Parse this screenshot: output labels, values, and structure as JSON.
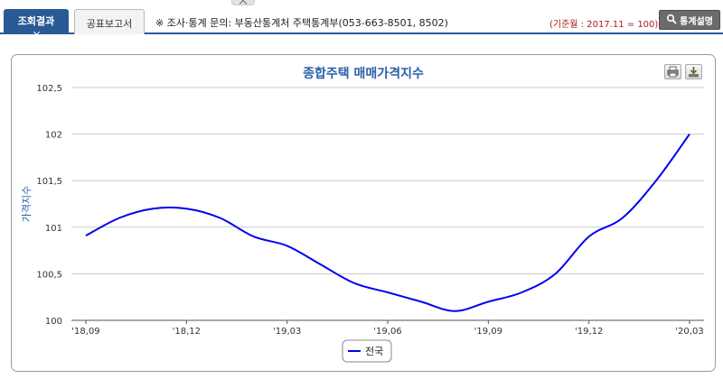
{
  "tabs": {
    "active_label": "조회결과",
    "report_label": "공표보고서"
  },
  "notice": "※ 조사·통계 문의: 부동산통계처 주택통계부(053-663-8501, 8502)",
  "base_note": "(기준월 : 2017.11 = 100)",
  "stat_button": {
    "label": "통계설명",
    "icon": "magnifier-icon"
  },
  "toolbar": {
    "print_icon": "print-icon",
    "download_icon": "download-icon"
  },
  "colors": {
    "brand_blue": "#2a5a96",
    "title_blue": "#2a5fa8",
    "series_line": "#0000ee",
    "base_note_red": "#b01818"
  },
  "chart_data": {
    "type": "line",
    "title": "종합주택 매매가격지수",
    "ylabel": "가격지수",
    "xlabel": "",
    "ylim": [
      100,
      102.5
    ],
    "yticks": [
      "100",
      "100,5",
      "101",
      "101,5",
      "102",
      "102,5"
    ],
    "grid": true,
    "legend_position": "bottom-center",
    "x": [
      "'18,09",
      "'18,10",
      "'18,11",
      "'18,12",
      "'19,01",
      "'19,02",
      "'19,03",
      "'19,04",
      "'19,05",
      "'19,06",
      "'19,07",
      "'19,08",
      "'19,09",
      "'19,10",
      "'19,11",
      "'19,12",
      "'20,01",
      "'20,02",
      "'20,03"
    ],
    "xtick_labels": [
      "'18,09",
      "'18,12",
      "'19,03",
      "'19,06",
      "'19,09",
      "'19,12",
      "'20,03"
    ],
    "series": [
      {
        "name": "전국",
        "values": [
          100.91,
          101.1,
          101.2,
          101.2,
          101.1,
          100.9,
          100.8,
          100.6,
          100.4,
          100.3,
          100.2,
          100.1,
          100.2,
          100.3,
          100.5,
          100.9,
          101.1,
          101.5,
          102.0
        ]
      }
    ]
  }
}
